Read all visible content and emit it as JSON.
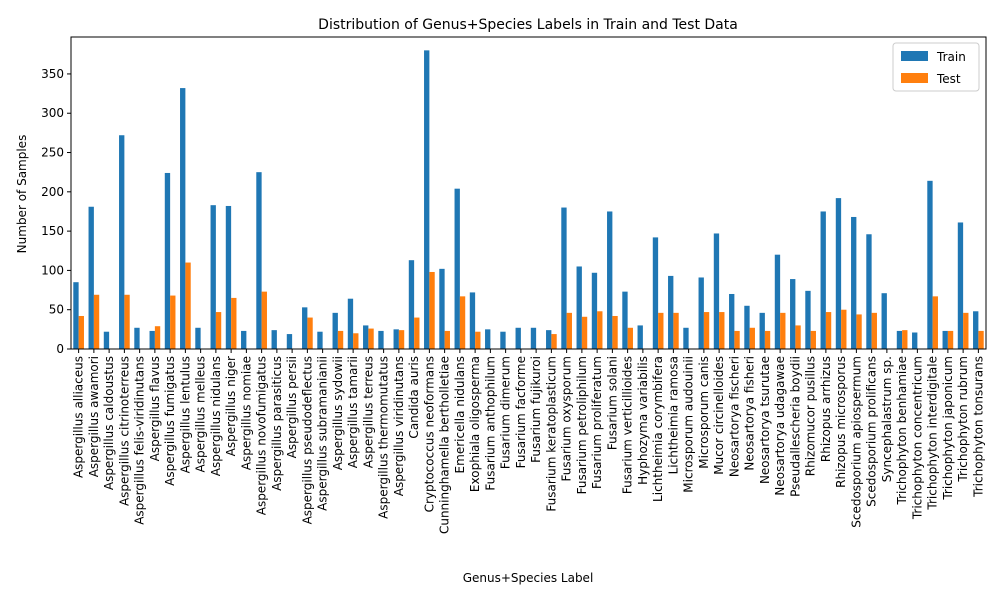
{
  "chart_data": {
    "type": "bar",
    "title": "Distribution of Genus+Species Labels in Train and Test Data",
    "xlabel": "Genus+Species Label",
    "ylabel": "Number of Samples",
    "ylim": [
      0,
      397
    ],
    "yticks": [
      0,
      50,
      100,
      150,
      200,
      250,
      300,
      350
    ],
    "grid": false,
    "legend_position": "top-right",
    "categories": [
      "Aspergillus alliaceus",
      "Aspergillus awamori",
      "Aspergillus caldoustus",
      "Aspergillus citrinoterreus",
      "Aspergillus felis-viridinutans",
      "Aspergillus flavus",
      "Aspergillus fumigatus",
      "Aspergillus lentulus",
      "Aspergillus melleus",
      "Aspergillus nidulans",
      "Aspergillus niger",
      "Aspergillus nomiae",
      "Aspergillus novofumigatus",
      "Aspergillus parasiticus",
      "Aspergillus persii",
      "Aspergillus pseudodeflectus",
      "Aspergillus subramanianii",
      "Aspergillus sydowii",
      "Aspergillus tamarii",
      "Aspergillus terreus",
      "Aspergillus thermomutatus",
      "Aspergillus viridinutans",
      "Candida auris",
      "Cryptococcus neoformans",
      "Cunninghamella bertholletiae",
      "Emericella nidulans",
      "Exophiala oligosperma",
      "Fusarium anthophilum",
      "Fusarium dimerum",
      "Fusarium facforme",
      "Fusarium fujikuroi",
      "Fusarium keratoplasticum",
      "Fusarium oxysporum",
      "Fusarium petroliphilum",
      "Fusarium proliferatum",
      "Fusarium solani",
      "Fusarium verticillioides",
      "Hyphozyma variabilis",
      "Lichtheimia corymbifera",
      "Lichtheimia ramosa",
      "Microsporum audouinii",
      "Microsporum canis",
      "Mucor circinelloides",
      "Neosartorya fischeri",
      "Neosartorya fisheri",
      "Neosartorya tsurutae",
      "Neosartorya udagawae",
      "Pseudallescheria boydii",
      "Rhizomucor pusillus",
      "Rhizopus arrhizus",
      "Rhizopus microsporus",
      "Scedosporium apiospermum",
      "Scedosporium prolificans",
      "Syncephalastrum sp.",
      "Trichophyton benhamiae",
      "Trichophyton concentricum",
      "Trichophyton interdigitale",
      "Trichophyton japonicum",
      "Trichophyton rubrum",
      "Trichophyton tonsurans"
    ],
    "series": [
      {
        "name": "Train",
        "color": "#1f77b4",
        "values": [
          85,
          181,
          22,
          272,
          27,
          23,
          224,
          332,
          27,
          183,
          182,
          23,
          225,
          24,
          19,
          53,
          22,
          46,
          64,
          30,
          23,
          25,
          113,
          380,
          102,
          204,
          72,
          25,
          22,
          27,
          27,
          24,
          180,
          105,
          97,
          175,
          73,
          30,
          142,
          93,
          27,
          91,
          147,
          70,
          55,
          46,
          120,
          89,
          74,
          175,
          192,
          168,
          146,
          71,
          23,
          21,
          214,
          23,
          161,
          48
        ]
      },
      {
        "name": "Test",
        "color": "#ff7f0e",
        "values": [
          42,
          69,
          0,
          69,
          0,
          29,
          68,
          110,
          0,
          47,
          65,
          0,
          73,
          0,
          0,
          40,
          0,
          23,
          20,
          26,
          0,
          24,
          40,
          98,
          23,
          67,
          22,
          0,
          0,
          0,
          0,
          19,
          46,
          41,
          48,
          42,
          27,
          0,
          46,
          46,
          0,
          47,
          47,
          23,
          27,
          23,
          46,
          30,
          23,
          47,
          50,
          44,
          46,
          0,
          24,
          0,
          67,
          23,
          46,
          23
        ]
      }
    ]
  }
}
